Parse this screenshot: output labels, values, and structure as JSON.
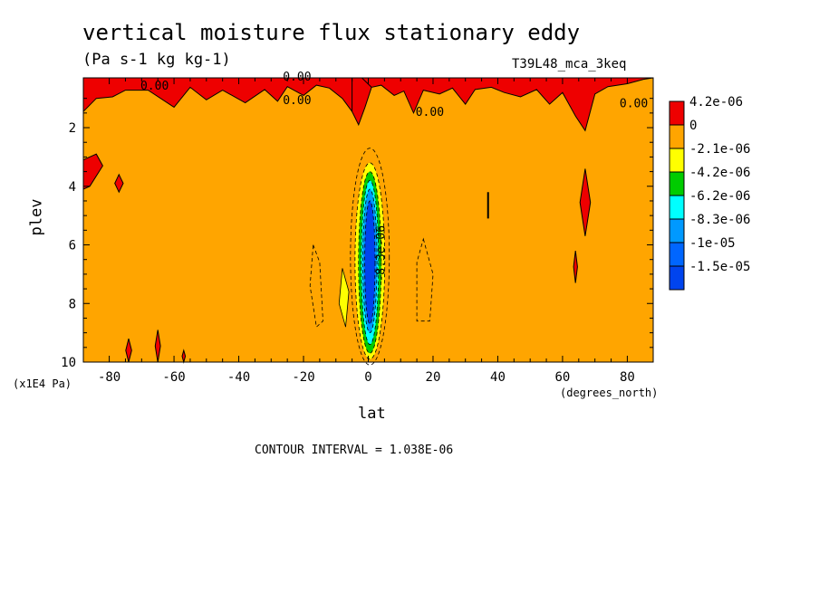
{
  "figure": {
    "title": "vertical moisture flux stationary eddy",
    "units": "(Pa s-1 kg kg-1)",
    "run_id": "T39L48_mca_3keq",
    "y_label": "plev",
    "y_units": "(x1E4 Pa)",
    "x_label": "lat",
    "x_units": "(degrees_north)",
    "contour_interval": "CONTOUR INTERVAL = 1.038E-06"
  },
  "chart_data": {
    "type": "heatmap",
    "title": "vertical moisture flux stationary eddy",
    "xlabel": "lat",
    "ylabel": "plev",
    "xlim": [
      -88,
      88
    ],
    "ylim": [
      10,
      0.3
    ],
    "x_ticks": [
      -80,
      -60,
      -40,
      -20,
      0,
      20,
      40,
      60,
      80
    ],
    "y_ticks": [
      2,
      4,
      6,
      8,
      10
    ],
    "legend_placement": "right",
    "colorbar": [
      {
        "label": "4.2e-06",
        "color": "#ee0000"
      },
      {
        "label": "0",
        "color": "#ffa500"
      },
      {
        "label": "-2.1e-06",
        "color": "#ffff00"
      },
      {
        "label": "-4.2e-06",
        "color": "#00cc00"
      },
      {
        "label": "-6.2e-06",
        "color": "#00ffff"
      },
      {
        "label": "-8.3e-06",
        "color": "#0099ff"
      },
      {
        "label": "-1e-05",
        "color": "#0066ff"
      },
      {
        "label": "-1.5e-05",
        "color": "#0044ee"
      }
    ],
    "background_color": "#ffa500",
    "contour_labels": [
      {
        "text": "0.00",
        "lat": -66,
        "plev": 0.7
      },
      {
        "text": "0.00",
        "lat": -22,
        "plev": 0.4
      },
      {
        "text": "0.00",
        "lat": -22,
        "plev": 1.2
      },
      {
        "text": "0.00",
        "lat": 19,
        "plev": 1.6
      },
      {
        "text": "0.00",
        "lat": 82,
        "plev": 1.3
      },
      {
        "text": "-8.3e-06",
        "lat": 5,
        "plev": 6.3
      }
    ],
    "features": [
      {
        "kind": "positive-band",
        "lat_range": [
          -88,
          88
        ],
        "plev_range": [
          0.3,
          1.5
        ],
        "color": "#ee0000"
      },
      {
        "kind": "positive-streak",
        "lat": -88,
        "plev_range": [
          3.0,
          4.1
        ]
      },
      {
        "kind": "positive-streak",
        "lat": -77,
        "plev_range": [
          3.6,
          4.2
        ]
      },
      {
        "kind": "positive-streak",
        "lat": 67,
        "plev_range": [
          3.5,
          5.7
        ]
      },
      {
        "kind": "positive-streak",
        "lat": 64,
        "plev_range": [
          6.2,
          7.3
        ]
      },
      {
        "kind": "positive-streak",
        "lat": 37,
        "plev_range": [
          4.2,
          5.1
        ]
      },
      {
        "kind": "negative-core",
        "lat_range": [
          -5,
          6
        ],
        "plev_range": [
          2.7,
          10
        ],
        "min_value": -1.5e-05
      }
    ]
  }
}
